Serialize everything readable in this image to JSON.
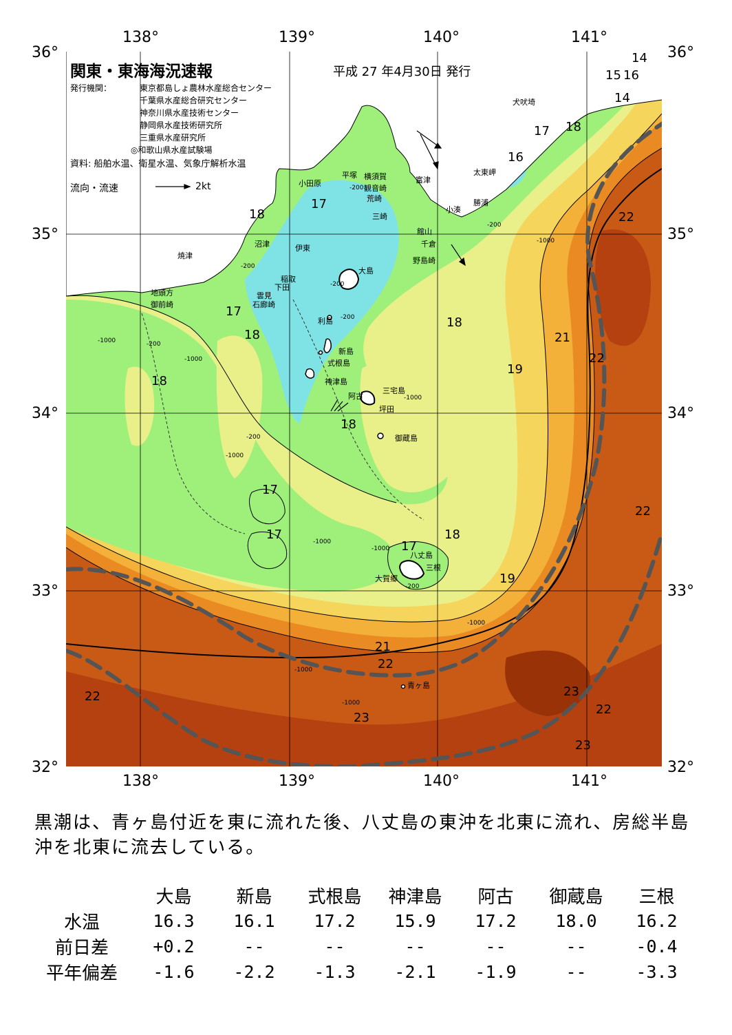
{
  "header": {
    "title": "関東・東海海況速報",
    "date": "平成 27 年4月30日 発行",
    "agency_label": "発行機関：",
    "agencies": [
      "東京都島しょ農林水産総合センター",
      "千葉県水産総合研究センター",
      "神奈川県水産技術センター",
      "静岡県水産技術研究所",
      "三重県水産研究所",
      "◎和歌山県水産試験場"
    ],
    "source": "資料: 船舶水温、衛星水温、気象庁解析水温",
    "flow_legend": "流向・流速",
    "flow_scale": "2kt"
  },
  "axes": {
    "lon_labels": [
      "138°",
      "139°",
      "140°",
      "141°"
    ],
    "lat_labels": [
      "36°",
      "35°",
      "34°",
      "33°",
      "32°"
    ]
  },
  "places": {
    "inubozaki": "犬吠埼",
    "taitozaki": "太東岬",
    "katsuura": "勝浦",
    "kominato": "小湊",
    "tateyama": "館山",
    "chikura": "千倉",
    "nojimazaki": "野島崎",
    "futtsu": "富津",
    "yokosuka": "横須賀",
    "kannonzaki": "観音崎",
    "arasaki": "荒崎",
    "misaki": "三崎",
    "hiratsuka": "平塚",
    "odawara": "小田原",
    "numazu": "沼津",
    "ito": "伊東",
    "inatori": "稲取",
    "shimoda": "下田",
    "kumomi": "雲見",
    "irozaki": "石廊崎",
    "yaizu": "焼津",
    "jitokata": "地頭方",
    "omaezaki": "御前崎",
    "oshima": "大島",
    "toshima": "利島",
    "niijima": "新島",
    "shikinejima": "式根島",
    "kozushima": "神津島",
    "miyakejima": "三宅島",
    "ako": "阿古",
    "tsuboda": "坪田",
    "mikurajima": "御蔵島",
    "hachijojima": "八丈島",
    "mitsune": "三根",
    "okago": "大賀郷",
    "aogashima": "青ヶ島"
  },
  "isotherm_labels": [
    "14",
    "15",
    "16",
    "14",
    "17",
    "18",
    "16",
    "17",
    "18",
    "22",
    "17",
    "18",
    "18",
    "18",
    "21",
    "22",
    "19",
    "18",
    "17",
    "17",
    "22",
    "17",
    "18",
    "19",
    "21",
    "22",
    "22",
    "23",
    "22",
    "23",
    "23"
  ],
  "depth_labels": [
    "-200",
    "-1000"
  ],
  "summary": "黒潮は、青ヶ島付近を東に流れた後、八丈島の東沖を北東に流れ、房総半島沖を北東に流去している。",
  "table": {
    "stations": [
      "大島",
      "新島",
      "式根島",
      "神津島",
      "阿古",
      "御蔵島",
      "三根"
    ],
    "rows": [
      {
        "label": "水温",
        "values": [
          "16.3",
          "16.1",
          "17.2",
          "15.9",
          "17.2",
          "18.0",
          "16.2"
        ]
      },
      {
        "label": "前日差",
        "values": [
          "+0.2",
          "--",
          "--",
          "--",
          "--",
          "--",
          "-0.4"
        ]
      },
      {
        "label": "平年偏差",
        "values": [
          "-1.6",
          "-2.2",
          "-1.3",
          "-2.1",
          "-1.9",
          "--",
          "-3.3"
        ]
      }
    ]
  },
  "colors": {
    "t14": "#3fc8f0",
    "t16": "#7fe3e6",
    "t17": "#9ef07a",
    "t18": "#e9f08a",
    "t19": "#f6d55c",
    "t20": "#f3b13a",
    "t21": "#ea8a22",
    "t22": "#d9681a",
    "t23": "#b54010",
    "kuroshio_line": "#555555"
  }
}
